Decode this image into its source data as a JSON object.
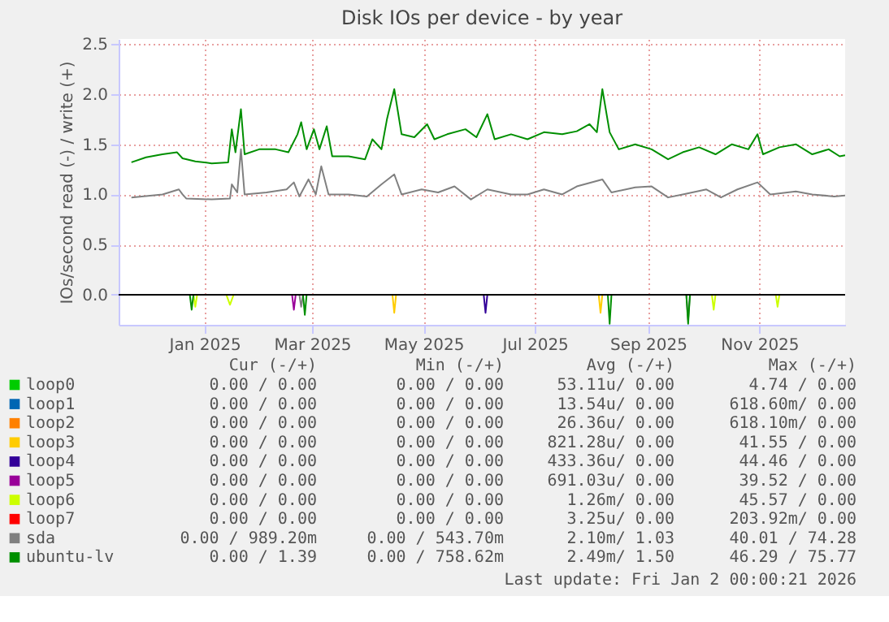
{
  "chart_data": {
    "type": "line",
    "title": "Disk IOs per device - by year",
    "ylabel": "IOs/second read (-) / write (+)",
    "xlim": [
      "2024-11-30",
      "2026-01-02"
    ],
    "xticks": [
      {
        "value": "2025-01-16",
        "label": "Jan 2025"
      },
      {
        "value": "2025-03-16",
        "label": "Mar 2025"
      },
      {
        "value": "2025-05-16",
        "label": "May 2025"
      },
      {
        "value": "2025-07-16",
        "label": "Jul 2025"
      },
      {
        "value": "2025-09-16",
        "label": "Sep 2025"
      },
      {
        "value": "2025-11-16",
        "label": "Nov 2025"
      }
    ],
    "ylim": [
      -0.3,
      2.55
    ],
    "yticks": [
      {
        "value": 0,
        "label": "0.0"
      },
      {
        "value": 0.5,
        "label": "0.5"
      },
      {
        "value": 1,
        "label": "1.0"
      },
      {
        "value": 1.5,
        "label": "1.5"
      },
      {
        "value": 2,
        "label": "2.0"
      },
      {
        "value": 2.5,
        "label": "2.5"
      }
    ],
    "grid": true,
    "legend": "bottom",
    "ref_lines": [
      {
        "axis": "y",
        "value": 0,
        "color": "#000000"
      }
    ],
    "series": [
      {
        "name": "loop0",
        "color": "#00cc00"
      },
      {
        "name": "loop1",
        "color": "#0066b3"
      },
      {
        "name": "loop2",
        "color": "#ff8000"
      },
      {
        "name": "loop3",
        "color": "#ffcc00",
        "x": [
          "2025-04-29",
          "2025-04-30",
          "2025-05-01",
          "2025-06-01",
          "2025-08-20",
          "2025-08-21",
          "2025-08-22"
        ],
        "values": [
          0,
          -0.18,
          0,
          null,
          0,
          -0.18,
          0
        ]
      },
      {
        "name": "loop4",
        "color": "#330099",
        "x": [
          "2025-06-18",
          "2025-06-19",
          "2025-06-20"
        ],
        "values": [
          0,
          -0.18,
          0
        ]
      },
      {
        "name": "loop5",
        "color": "#990099",
        "x": [
          "2025-03-05",
          "2025-03-06",
          "2025-03-07"
        ],
        "values": [
          0,
          -0.15,
          0
        ]
      },
      {
        "name": "loop6",
        "color": "#ccff00",
        "x": [
          "2025-01-10",
          "2025-01-11",
          "2025-01-12",
          "2025-01-20",
          "2025-01-28",
          "2025-01-30",
          "2025-02-01",
          "2025-05-01",
          "2025-10-21",
          "2025-10-22",
          "2025-10-23",
          "2025-11-01",
          "2025-11-25",
          "2025-11-26",
          "2025-11-27"
        ],
        "values": [
          0,
          -0.12,
          0,
          null,
          0,
          -0.1,
          0,
          null,
          0,
          -0.15,
          0,
          null,
          0,
          -0.12,
          0
        ]
      },
      {
        "name": "loop7",
        "color": "#ff0000"
      },
      {
        "color": "#808080",
        "x": [
          "2025-03-09",
          "2025-03-10",
          "2025-03-11",
          "2025-06-01",
          "2025-10-07",
          "2025-10-08",
          "2025-10-09"
        ],
        "values": [
          0,
          -0.12,
          0,
          null,
          0,
          -0.25,
          0
        ]
      },
      {
        "color": "#008f00",
        "x": [
          "2025-01-08",
          "2025-01-09",
          "2025-01-10",
          "2025-02-01",
          "2025-03-11",
          "2025-03-12",
          "2025-03-13",
          "2025-06-01",
          "2025-08-25",
          "2025-08-26",
          "2025-08-27",
          "2025-09-15",
          "2025-10-07",
          "2025-10-08",
          "2025-10-09"
        ],
        "values": [
          0,
          -0.15,
          0,
          null,
          0,
          -0.2,
          0,
          null,
          0,
          -0.29,
          0,
          null,
          0,
          -0.29,
          0
        ]
      },
      {
        "name": "sda",
        "color": "#808080",
        "x": [
          "2024-12-07",
          "2024-12-24",
          "2025-01-02",
          "2025-01-04",
          "2025-01-06",
          "2025-01-20",
          "2025-01-30",
          "2025-01-31",
          "2025-02-03",
          "2025-02-05",
          "2025-02-07",
          "2025-02-19",
          "2025-03-02",
          "2025-03-06",
          "2025-03-09",
          "2025-03-14",
          "2025-03-18",
          "2025-03-21",
          "2025-03-25",
          "2025-04-05",
          "2025-04-15",
          "2025-04-23",
          "2025-04-30",
          "2025-05-04",
          "2025-05-15",
          "2025-05-24",
          "2025-06-02",
          "2025-06-11",
          "2025-06-20",
          "2025-07-03",
          "2025-07-12",
          "2025-07-21",
          "2025-07-31",
          "2025-08-08",
          "2025-08-22",
          "2025-08-27",
          "2025-09-09",
          "2025-09-18",
          "2025-09-27",
          "2025-10-05",
          "2025-10-18",
          "2025-10-26",
          "2025-11-04",
          "2025-11-15",
          "2025-11-22",
          "2025-12-06",
          "2025-12-15",
          "2025-12-27",
          "2026-01-02"
        ],
        "values": [
          0.97,
          1.0,
          1.05,
          1.0,
          0.96,
          0.95,
          0.96,
          1.1,
          1.02,
          1.45,
          1.0,
          1.02,
          1.05,
          1.12,
          0.98,
          1.15,
          1.0,
          1.28,
          1.0,
          1.0,
          0.98,
          1.1,
          1.2,
          1.0,
          1.05,
          1.02,
          1.08,
          0.95,
          1.05,
          1.0,
          1.0,
          1.05,
          1.0,
          1.08,
          1.15,
          1.02,
          1.07,
          1.08,
          0.97,
          1.0,
          1.05,
          0.97,
          1.05,
          1.12,
          1.0,
          1.03,
          1.0,
          0.98,
          0.99
        ]
      },
      {
        "name": "ubuntu-lv",
        "color": "#008f00",
        "x": [
          "2024-12-07",
          "2024-12-15",
          "2024-12-24",
          "2025-01-01",
          "2025-01-04",
          "2025-01-11",
          "2025-01-20",
          "2025-01-29",
          "2025-01-31",
          "2025-02-02",
          "2025-02-05",
          "2025-02-07",
          "2025-02-15",
          "2025-02-24",
          "2025-03-03",
          "2025-03-08",
          "2025-03-10",
          "2025-03-13",
          "2025-03-17",
          "2025-03-20",
          "2025-03-24",
          "2025-03-27",
          "2025-04-05",
          "2025-04-14",
          "2025-04-18",
          "2025-04-23",
          "2025-04-26",
          "2025-04-30",
          "2025-05-04",
          "2025-05-11",
          "2025-05-18",
          "2025-05-22",
          "2025-05-29",
          "2025-06-08",
          "2025-06-14",
          "2025-06-20",
          "2025-06-24",
          "2025-07-03",
          "2025-07-12",
          "2025-07-21",
          "2025-07-31",
          "2025-08-08",
          "2025-08-15",
          "2025-08-19",
          "2025-08-22",
          "2025-08-26",
          "2025-08-31",
          "2025-09-09",
          "2025-09-18",
          "2025-09-27",
          "2025-10-05",
          "2025-10-14",
          "2025-10-23",
          "2025-11-01",
          "2025-11-10",
          "2025-11-15",
          "2025-11-18",
          "2025-11-27",
          "2025-12-06",
          "2025-12-15",
          "2025-12-24",
          "2025-12-30",
          "2026-01-02"
        ],
        "values": [
          1.32,
          1.37,
          1.4,
          1.42,
          1.36,
          1.33,
          1.31,
          1.32,
          1.65,
          1.42,
          1.85,
          1.4,
          1.45,
          1.45,
          1.42,
          1.6,
          1.72,
          1.45,
          1.65,
          1.45,
          1.68,
          1.38,
          1.38,
          1.35,
          1.55,
          1.45,
          1.75,
          2.05,
          1.6,
          1.57,
          1.7,
          1.55,
          1.6,
          1.65,
          1.57,
          1.8,
          1.55,
          1.6,
          1.55,
          1.62,
          1.6,
          1.63,
          1.7,
          1.62,
          2.05,
          1.62,
          1.45,
          1.5,
          1.45,
          1.35,
          1.42,
          1.47,
          1.4,
          1.5,
          1.45,
          1.6,
          1.4,
          1.47,
          1.5,
          1.4,
          1.45,
          1.38,
          1.39
        ]
      }
    ],
    "annotations": [
      "Cur (-/+)",
      "Min (-/+)",
      "Avg (-/+)",
      "Max (-/+)",
      "0.00 /   0.00",
      "0.00 /   0.00",
      "53.11u/   0.00",
      "4.74 /   0.00",
      "0.00 /   0.00",
      "0.00 /   0.00",
      "13.54u/   0.00",
      "618.60m/   0.00",
      "0.00 /   0.00",
      "0.00 /   0.00",
      "26.36u/   0.00",
      "618.10m/   0.00",
      "0.00 /   0.00",
      "0.00 /   0.00",
      "821.28u/   0.00",
      "41.55 /   0.00",
      "0.00 /   0.00",
      "0.00 /   0.00",
      "433.36u/   0.00",
      "44.46 /   0.00",
      "0.00 /   0.00",
      "0.00 /   0.00",
      "691.03u/   0.00",
      "39.52 /   0.00",
      "0.00 /   0.00",
      "0.00 /   0.00",
      "1.26m/   0.00",
      "45.57 /   0.00",
      "0.00 /   0.00",
      "0.00 /   0.00",
      "3.25u/   0.00",
      "203.92m/   0.00",
      "0.00 / 989.20m",
      "0.00 / 543.70m",
      "2.10m/   1.03",
      "40.01 /  74.28",
      "0.00 /   1.39",
      "0.00 / 758.62m",
      "2.49m/   1.50",
      "46.29 /  75.77",
      "Last update: Fri Jan  2 00:00:21 2026"
    ]
  }
}
